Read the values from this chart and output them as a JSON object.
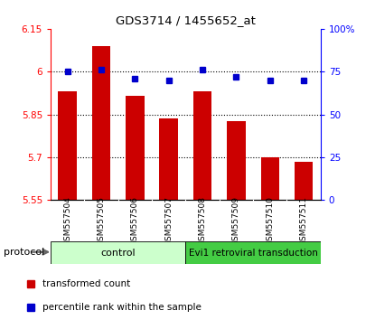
{
  "title": "GDS3714 / 1455652_at",
  "samples": [
    "GSM557504",
    "GSM557505",
    "GSM557506",
    "GSM557507",
    "GSM557508",
    "GSM557509",
    "GSM557510",
    "GSM557511"
  ],
  "transformed_counts": [
    5.93,
    6.09,
    5.915,
    5.835,
    5.93,
    5.825,
    5.7,
    5.685
  ],
  "percentile_ranks": [
    75,
    76,
    71,
    70,
    76,
    72,
    70,
    70
  ],
  "ylim_left": [
    5.55,
    6.15
  ],
  "ylim_right": [
    0,
    100
  ],
  "yticks_left": [
    5.55,
    5.7,
    5.85,
    6.0,
    6.15
  ],
  "yticks_right": [
    0,
    25,
    50,
    75,
    100
  ],
  "ytick_labels_left": [
    "5.55",
    "5.7",
    "5.85",
    "6",
    "6.15"
  ],
  "ytick_labels_right": [
    "0",
    "25",
    "50",
    "75",
    "100%"
  ],
  "bar_color": "#cc0000",
  "dot_color": "#0000cc",
  "ctrl_color": "#ccffcc",
  "evi_color": "#44cc44",
  "tick_area_color": "#cccccc",
  "bar_bottom": 5.55,
  "legend_items": [
    {
      "label": "transformed count",
      "color": "#cc0000"
    },
    {
      "label": "percentile rank within the sample",
      "color": "#0000cc"
    }
  ],
  "grid_yticks": [
    6.0,
    5.85,
    5.7
  ]
}
